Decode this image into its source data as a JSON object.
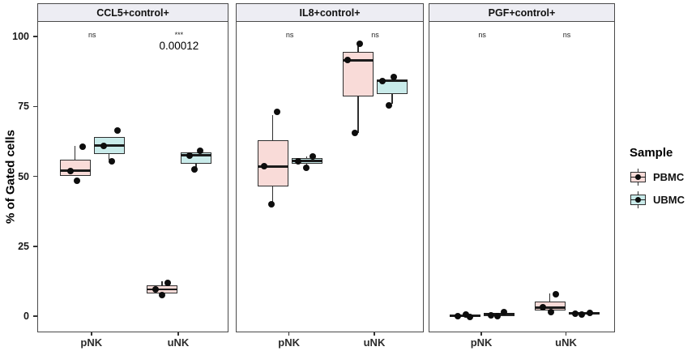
{
  "figure": {
    "ylabel": "% of Gated cells",
    "legend": {
      "title": "Sample",
      "items": [
        {
          "label": "PBMC",
          "color": "#F9DBD8"
        },
        {
          "label": "UBMC",
          "color": "#C9EBEA"
        }
      ]
    }
  },
  "chart_data": {
    "type": "boxplot",
    "ylabel": "% of Gated cells",
    "ylim": [
      -6,
      105
    ],
    "yticks": [
      0,
      25,
      50,
      75,
      100
    ],
    "x_categories": [
      "pNK",
      "uNK"
    ],
    "series": [
      "PBMC",
      "UBMC"
    ],
    "colors": {
      "PBMC": "#F9DBD8",
      "UBMC": "#C9EBEA"
    },
    "point_color": "#0d0d0d",
    "facets": [
      {
        "title": "CCL5+control+",
        "annotations": [
          {
            "x": "pNK",
            "label": "ns"
          },
          {
            "x": "uNK",
            "label": "***",
            "sublabel": "0.00012"
          }
        ],
        "boxes": [
          {
            "x": "pNK",
            "sample": "PBMC",
            "whisker_low": 50,
            "q1": 50,
            "median": 52,
            "q3": 56,
            "whisker_high": 61,
            "points": [
              {
                "v": 52,
                "dx": -6
              },
              {
                "v": 60.5,
                "dx": 9
              },
              {
                "v": 48.5,
                "dx": 2
              }
            ]
          },
          {
            "x": "pNK",
            "sample": "UBMC",
            "whisker_low": 56,
            "q1": 58,
            "median": 61,
            "q3": 64,
            "whisker_high": 64,
            "points": [
              {
                "v": 66.5,
                "dx": 10
              },
              {
                "v": 61,
                "dx": -7
              },
              {
                "v": 55.5,
                "dx": 3
              }
            ]
          },
          {
            "x": "uNK",
            "sample": "PBMC",
            "whisker_low": 8,
            "q1": 8,
            "median": 9.5,
            "q3": 11,
            "whisker_high": 12.5,
            "points": [
              {
                "v": 9.5,
                "dx": -8
              },
              {
                "v": 12,
                "dx": 7
              },
              {
                "v": 7.5,
                "dx": 0
              }
            ]
          },
          {
            "x": "uNK",
            "sample": "UBMC",
            "whisker_low": 52.5,
            "q1": 54.5,
            "median": 57.5,
            "q3": 58.5,
            "whisker_high": 58.5,
            "points": [
              {
                "v": 57.5,
                "dx": -8
              },
              {
                "v": 59,
                "dx": 5
              },
              {
                "v": 52.5,
                "dx": -2
              }
            ]
          }
        ]
      },
      {
        "title": "IL8+control+",
        "annotations": [
          {
            "x": "pNK",
            "label": "ns"
          },
          {
            "x": "uNK",
            "label": "ns"
          }
        ],
        "boxes": [
          {
            "x": "pNK",
            "sample": "PBMC",
            "whisker_low": 40,
            "q1": 46.5,
            "median": 53.5,
            "q3": 63,
            "whisker_high": 72,
            "points": [
              {
                "v": 73,
                "dx": 5
              },
              {
                "v": 53.5,
                "dx": -11
              },
              {
                "v": 40,
                "dx": -2
              }
            ]
          },
          {
            "x": "pNK",
            "sample": "UBMC",
            "whisker_low": 53.5,
            "q1": 54.5,
            "median": 55.5,
            "q3": 56.5,
            "whisker_high": 57,
            "points": [
              {
                "v": 55.5,
                "dx": -11
              },
              {
                "v": 57,
                "dx": 7
              },
              {
                "v": 53,
                "dx": -1
              }
            ]
          },
          {
            "x": "uNK",
            "sample": "PBMC",
            "whisker_low": 65.5,
            "q1": 78.5,
            "median": 91.5,
            "q3": 94.5,
            "whisker_high": 97,
            "points": [
              {
                "v": 97.5,
                "dx": 2
              },
              {
                "v": 91.5,
                "dx": -13
              },
              {
                "v": 65.5,
                "dx": -4
              }
            ]
          },
          {
            "x": "uNK",
            "sample": "UBMC",
            "whisker_low": 76,
            "q1": 79.5,
            "median": 84,
            "q3": 84.5,
            "whisker_high": 84.5,
            "points": [
              {
                "v": 84,
                "dx": -12
              },
              {
                "v": 85.5,
                "dx": 2
              },
              {
                "v": 75.5,
                "dx": -4
              }
            ]
          }
        ]
      },
      {
        "title": "PGF+control+",
        "annotations": [
          {
            "x": "pNK",
            "label": "ns"
          },
          {
            "x": "uNK",
            "label": "ns"
          }
        ],
        "boxes": [
          {
            "x": "pNK",
            "sample": "PBMC",
            "whisker_low": -0.3,
            "q1": -0.3,
            "median": 0.2,
            "q3": 0.7,
            "whisker_high": 0.7,
            "points": [
              {
                "v": 0,
                "dx": -9
              },
              {
                "v": 0.5,
                "dx": 1
              },
              {
                "v": -0.3,
                "dx": 6
              }
            ]
          },
          {
            "x": "pNK",
            "sample": "UBMC",
            "whisker_low": 0,
            "q1": 0,
            "median": 0.7,
            "q3": 1.2,
            "whisker_high": 1.2,
            "points": [
              {
                "v": 0.3,
                "dx": -10
              },
              {
                "v": 0,
                "dx": -2
              },
              {
                "v": 1.4,
                "dx": 6
              }
            ]
          },
          {
            "x": "uNK",
            "sample": "PBMC",
            "whisker_low": 2,
            "q1": 2,
            "median": 3,
            "q3": 5.2,
            "whisker_high": 8,
            "points": [
              {
                "v": 3.2,
                "dx": -9
              },
              {
                "v": 1.5,
                "dx": 1
              },
              {
                "v": 7.8,
                "dx": 7
              }
            ]
          },
          {
            "x": "uNK",
            "sample": "UBMC",
            "whisker_low": 0.5,
            "q1": 0.5,
            "median": 1,
            "q3": 1.5,
            "whisker_high": 1.5,
            "points": [
              {
                "v": 0.8,
                "dx": -11
              },
              {
                "v": 0.5,
                "dx": -3
              },
              {
                "v": 1.2,
                "dx": 7
              }
            ]
          }
        ]
      }
    ]
  }
}
